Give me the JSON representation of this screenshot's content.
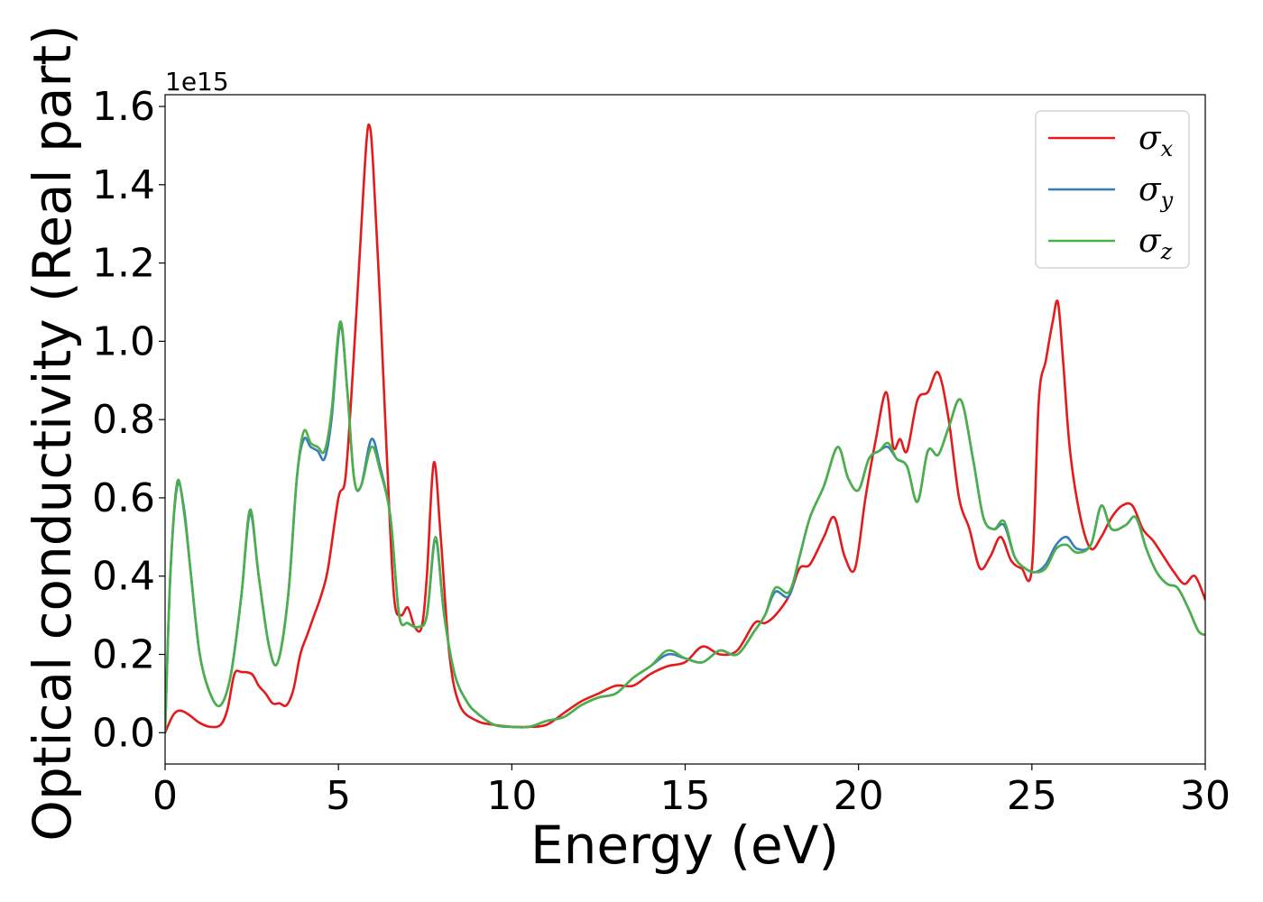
{
  "chart_data": {
    "type": "line",
    "xlabel": "Energy (eV)",
    "ylabel": "Optical conductivity (Real part)",
    "y_offset_label": "1e15",
    "y_scale": 1000000000000000.0,
    "xlim": [
      0,
      30
    ],
    "ylim": [
      -0.08,
      1.63
    ],
    "x_ticks": [
      0,
      5,
      10,
      15,
      20,
      25,
      30
    ],
    "x_tick_labels": [
      "0",
      "5",
      "10",
      "15",
      "20",
      "25",
      "30"
    ],
    "y_ticks": [
      0.0,
      0.2,
      0.4,
      0.6,
      0.8,
      1.0,
      1.2,
      1.4,
      1.6
    ],
    "y_tick_labels": [
      "0.0",
      "0.2",
      "0.4",
      "0.6",
      "0.8",
      "1.0",
      "1.2",
      "1.4",
      "1.6"
    ],
    "grid": false,
    "legend_position": "top-right",
    "series": [
      {
        "name": "σx",
        "symbol": "σ",
        "subscript": "x",
        "color": "#e41a1c",
        "x": [
          0,
          0.2,
          0.35,
          0.5,
          0.7,
          1.0,
          1.3,
          1.6,
          1.8,
          2.0,
          2.2,
          2.5,
          2.7,
          2.9,
          3.1,
          3.3,
          3.5,
          3.7,
          3.9,
          4.1,
          4.3,
          4.5,
          4.7,
          5.0,
          5.2,
          5.4,
          5.6,
          5.8,
          5.9,
          6.0,
          6.2,
          6.4,
          6.6,
          6.8,
          7.0,
          7.2,
          7.4,
          7.55,
          7.75,
          7.95,
          8.2,
          8.5,
          9.0,
          9.5,
          10.0,
          10.5,
          11.0,
          11.5,
          12.0,
          12.5,
          13.0,
          13.5,
          14.0,
          14.5,
          15.0,
          15.5,
          16.0,
          16.5,
          17.0,
          17.3,
          17.6,
          18.0,
          18.3,
          18.6,
          19.0,
          19.3,
          19.6,
          19.9,
          20.2,
          20.5,
          20.8,
          21.0,
          21.2,
          21.4,
          21.7,
          22.0,
          22.3,
          22.6,
          22.9,
          23.2,
          23.5,
          23.8,
          24.1,
          24.4,
          24.7,
          25.0,
          25.2,
          25.4,
          25.6,
          25.75,
          25.9,
          26.1,
          26.4,
          26.7,
          27.0,
          27.3,
          27.6,
          27.9,
          28.2,
          28.5,
          28.8,
          29.1,
          29.4,
          29.7,
          30.0
        ],
        "y": [
          0.0,
          0.04,
          0.055,
          0.055,
          0.045,
          0.025,
          0.015,
          0.02,
          0.06,
          0.15,
          0.155,
          0.15,
          0.12,
          0.1,
          0.075,
          0.075,
          0.07,
          0.11,
          0.2,
          0.25,
          0.3,
          0.35,
          0.42,
          0.6,
          0.65,
          0.9,
          1.2,
          1.5,
          1.55,
          1.45,
          1.1,
          0.7,
          0.35,
          0.3,
          0.32,
          0.27,
          0.27,
          0.4,
          0.69,
          0.5,
          0.2,
          0.07,
          0.03,
          0.02,
          0.015,
          0.015,
          0.02,
          0.05,
          0.08,
          0.1,
          0.12,
          0.12,
          0.15,
          0.17,
          0.18,
          0.22,
          0.2,
          0.21,
          0.28,
          0.28,
          0.3,
          0.35,
          0.42,
          0.43,
          0.5,
          0.55,
          0.45,
          0.42,
          0.6,
          0.75,
          0.87,
          0.73,
          0.75,
          0.72,
          0.85,
          0.87,
          0.92,
          0.8,
          0.6,
          0.52,
          0.42,
          0.45,
          0.5,
          0.44,
          0.42,
          0.42,
          0.85,
          0.95,
          1.05,
          1.1,
          0.95,
          0.72,
          0.55,
          0.47,
          0.5,
          0.55,
          0.58,
          0.58,
          0.52,
          0.49,
          0.45,
          0.41,
          0.38,
          0.4,
          0.34
        ]
      },
      {
        "name": "σy",
        "symbol": "σ",
        "subscript": "y",
        "color": "#377eb8",
        "x": [
          0,
          0.15,
          0.35,
          0.55,
          0.75,
          1.0,
          1.3,
          1.6,
          1.9,
          2.2,
          2.45,
          2.7,
          3.0,
          3.25,
          3.55,
          3.8,
          4.0,
          4.2,
          4.4,
          4.6,
          4.8,
          5.05,
          5.25,
          5.45,
          5.65,
          5.95,
          6.2,
          6.5,
          6.75,
          7.0,
          7.3,
          7.55,
          7.8,
          8.05,
          8.35,
          8.7,
          9.0,
          9.5,
          10.0,
          10.5,
          11.0,
          11.5,
          12.0,
          12.5,
          13.0,
          13.5,
          14.0,
          14.5,
          15.0,
          15.5,
          16.0,
          16.5,
          17.0,
          17.3,
          17.6,
          18.0,
          18.3,
          18.6,
          19.0,
          19.4,
          19.7,
          20.0,
          20.3,
          20.6,
          20.85,
          21.1,
          21.4,
          21.7,
          22.0,
          22.3,
          22.6,
          22.95,
          23.3,
          23.6,
          23.9,
          24.2,
          24.5,
          24.8,
          25.1,
          25.4,
          25.7,
          26.0,
          26.3,
          26.7,
          27.0,
          27.3,
          27.7,
          28.0,
          28.3,
          28.6,
          28.9,
          29.2,
          29.5,
          29.8,
          30.0
        ],
        "y": [
          0.0,
          0.4,
          0.63,
          0.57,
          0.4,
          0.2,
          0.1,
          0.07,
          0.15,
          0.35,
          0.56,
          0.4,
          0.22,
          0.18,
          0.35,
          0.65,
          0.75,
          0.73,
          0.72,
          0.7,
          0.8,
          1.04,
          0.88,
          0.65,
          0.63,
          0.75,
          0.68,
          0.55,
          0.3,
          0.28,
          0.27,
          0.3,
          0.49,
          0.3,
          0.15,
          0.08,
          0.05,
          0.02,
          0.015,
          0.015,
          0.03,
          0.04,
          0.07,
          0.09,
          0.1,
          0.14,
          0.17,
          0.2,
          0.19,
          0.18,
          0.21,
          0.2,
          0.26,
          0.3,
          0.36,
          0.35,
          0.45,
          0.55,
          0.63,
          0.73,
          0.65,
          0.62,
          0.7,
          0.72,
          0.73,
          0.7,
          0.68,
          0.59,
          0.72,
          0.71,
          0.78,
          0.85,
          0.7,
          0.55,
          0.52,
          0.53,
          0.45,
          0.42,
          0.41,
          0.43,
          0.48,
          0.5,
          0.47,
          0.48,
          0.58,
          0.52,
          0.53,
          0.55,
          0.47,
          0.41,
          0.38,
          0.37,
          0.32,
          0.26,
          0.25
        ]
      },
      {
        "name": "σz",
        "symbol": "σ",
        "subscript": "z",
        "color": "#4daf4a",
        "x": [
          0,
          0.15,
          0.35,
          0.55,
          0.75,
          1.0,
          1.3,
          1.6,
          1.9,
          2.2,
          2.45,
          2.7,
          3.0,
          3.25,
          3.55,
          3.8,
          4.0,
          4.2,
          4.4,
          4.6,
          4.8,
          5.05,
          5.25,
          5.45,
          5.65,
          5.95,
          6.2,
          6.5,
          6.75,
          7.0,
          7.3,
          7.55,
          7.8,
          8.05,
          8.35,
          8.7,
          9.0,
          9.5,
          10.0,
          10.5,
          11.0,
          11.5,
          12.0,
          12.5,
          13.0,
          13.5,
          14.0,
          14.5,
          15.0,
          15.5,
          16.0,
          16.5,
          17.0,
          17.3,
          17.6,
          18.0,
          18.3,
          18.6,
          19.0,
          19.4,
          19.7,
          20.0,
          20.3,
          20.6,
          20.85,
          21.1,
          21.4,
          21.7,
          22.0,
          22.3,
          22.6,
          22.95,
          23.3,
          23.6,
          23.9,
          24.2,
          24.5,
          24.8,
          25.1,
          25.4,
          25.7,
          26.0,
          26.3,
          26.7,
          27.0,
          27.3,
          27.7,
          28.0,
          28.3,
          28.6,
          28.9,
          29.2,
          29.5,
          29.8,
          30.0
        ],
        "y": [
          0.0,
          0.4,
          0.64,
          0.56,
          0.4,
          0.2,
          0.1,
          0.07,
          0.15,
          0.35,
          0.57,
          0.4,
          0.22,
          0.18,
          0.35,
          0.65,
          0.77,
          0.74,
          0.73,
          0.72,
          0.82,
          1.05,
          0.88,
          0.65,
          0.63,
          0.73,
          0.67,
          0.55,
          0.3,
          0.28,
          0.27,
          0.3,
          0.5,
          0.3,
          0.15,
          0.08,
          0.05,
          0.02,
          0.015,
          0.015,
          0.03,
          0.04,
          0.07,
          0.09,
          0.1,
          0.14,
          0.17,
          0.21,
          0.19,
          0.18,
          0.21,
          0.2,
          0.26,
          0.3,
          0.37,
          0.36,
          0.45,
          0.55,
          0.63,
          0.73,
          0.65,
          0.62,
          0.7,
          0.72,
          0.74,
          0.7,
          0.68,
          0.59,
          0.72,
          0.71,
          0.78,
          0.85,
          0.7,
          0.55,
          0.52,
          0.54,
          0.45,
          0.42,
          0.41,
          0.42,
          0.47,
          0.48,
          0.46,
          0.48,
          0.58,
          0.52,
          0.53,
          0.55,
          0.47,
          0.41,
          0.38,
          0.37,
          0.32,
          0.26,
          0.25
        ]
      }
    ]
  }
}
